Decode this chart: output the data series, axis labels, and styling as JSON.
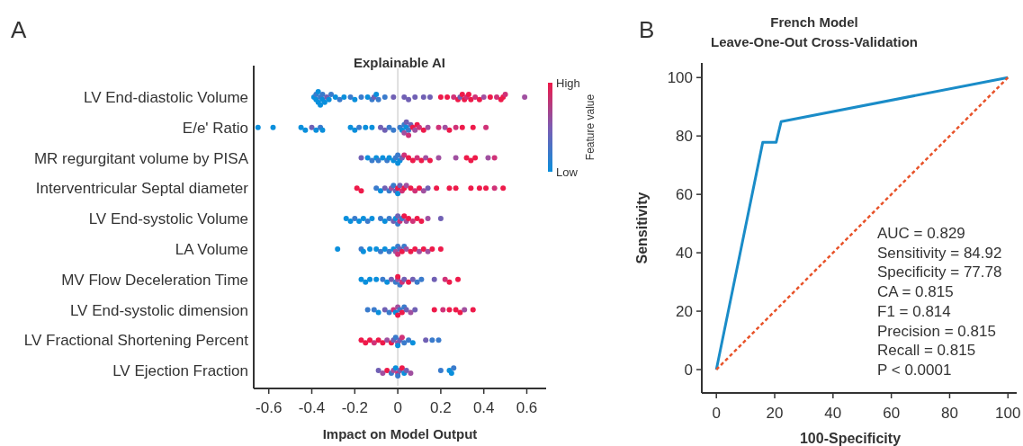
{
  "chart_data": [
    {
      "type": "scatter",
      "orientation": "horizontal",
      "title": "Explainable AI",
      "xlabel": "Impact on Model Output",
      "clabel": "Feature value",
      "clim": [
        0,
        1
      ],
      "cticks": [
        {
          "value": 0,
          "label": "Low"
        },
        {
          "value": 1,
          "label": "High"
        }
      ],
      "xlim": [
        -0.67,
        0.69
      ],
      "xticks": [
        {
          "value": -0.6,
          "label": "-0.6"
        },
        {
          "value": -0.4,
          "label": "-0.4"
        },
        {
          "value": -0.2,
          "label": "-0.2"
        },
        {
          "value": 0,
          "label": "0"
        },
        {
          "value": 0.2,
          "label": "0.2"
        },
        {
          "value": 0.4,
          "label": "0.4"
        },
        {
          "value": 0.6,
          "label": "0.6"
        }
      ],
      "ref_lines": [
        {
          "axis": "x",
          "value": 0,
          "color": "#d6d6d6"
        }
      ],
      "annotations": [
        "A"
      ],
      "categories": [
        "LV End-diastolic Volume",
        "E/e' Ratio",
        "MR regurgitant volume by PISA",
        "Interventricular Septal diameter",
        "LV End-systolic Volume",
        "LA Volume",
        "MV Flow Deceleration Time",
        "LV End-systolic dimension",
        "LV Fractional Shortening Percent",
        "LV Ejection Fraction"
      ],
      "series": [
        {
          "x": [
            "LV End-diastolic Volume",
            "LV End-diastolic Volume",
            "LV End-diastolic Volume",
            "LV End-diastolic Volume",
            "LV End-diastolic Volume",
            "LV End-diastolic Volume",
            "LV End-diastolic Volume",
            "LV End-diastolic Volume",
            "LV End-diastolic Volume",
            "LV End-diastolic Volume",
            "LV End-diastolic Volume",
            "LV End-diastolic Volume",
            "LV End-diastolic Volume",
            "LV End-diastolic Volume",
            "LV End-diastolic Volume",
            "LV End-diastolic Volume",
            "LV End-diastolic Volume",
            "LV End-diastolic Volume",
            "LV End-diastolic Volume",
            "LV End-diastolic Volume",
            "LV End-diastolic Volume",
            "LV End-diastolic Volume",
            "LV End-diastolic Volume",
            "LV End-diastolic Volume",
            "LV End-diastolic Volume",
            "LV End-diastolic Volume",
            "LV End-diastolic Volume",
            "LV End-diastolic Volume",
            "LV End-diastolic Volume",
            "LV End-diastolic Volume",
            "LV End-diastolic Volume",
            "LV End-diastolic Volume",
            "LV End-diastolic Volume",
            "LV End-diastolic Volume",
            "LV End-diastolic Volume",
            "LV End-diastolic Volume",
            "LV End-diastolic Volume",
            "LV End-diastolic Volume",
            "LV End-diastolic Volume",
            "LV End-diastolic Volume",
            "LV End-diastolic Volume",
            "LV End-diastolic Volume",
            "LV End-diastolic Volume",
            "LV End-diastolic Volume",
            "LV End-diastolic Volume",
            "LV End-diastolic Volume",
            "LV End-diastolic Volume",
            "LV End-diastolic Volume",
            "LV End-diastolic Volume",
            "LV End-diastolic Volume"
          ],
          "values": [
            -0.39,
            -0.38,
            -0.38,
            -0.37,
            -0.37,
            -0.36,
            -0.36,
            -0.35,
            -0.35,
            -0.34,
            -0.33,
            -0.32,
            -0.31,
            -0.29,
            -0.27,
            -0.25,
            -0.22,
            -0.2,
            -0.17,
            -0.14,
            -0.12,
            -0.11,
            -0.1,
            -0.09,
            -0.06,
            -0.02,
            0.03,
            0.05,
            0.08,
            0.12,
            0.15,
            0.2,
            0.23,
            0.26,
            0.28,
            0.29,
            0.3,
            0.31,
            0.32,
            0.33,
            0.34,
            0.36,
            0.38,
            0.4,
            0.43,
            0.46,
            0.48,
            0.49,
            0.5,
            0.59
          ],
          "colors": [
            "#0a8fdc",
            "#0a8fdc",
            "#3a7bcc",
            "#0a8fdc",
            "#0a8fdc",
            "#3a7bcc",
            "#0a8fdc",
            "#0a8fdc",
            "#3a7bcc",
            "#0a8fdc",
            "#7060b4",
            "#0a8fdc",
            "#3a7bcc",
            "#0a8fdc",
            "#3a7bcc",
            "#0a8fdc",
            "#3a7bcc",
            "#0a8fdc",
            "#3a7bcc",
            "#0a8fdc",
            "#3a7bcc",
            "#7060b4",
            "#0a8fdc",
            "#3a7bcc",
            "#3a7bcc",
            "#7060b4",
            "#7060b4",
            "#7060b4",
            "#7060b4",
            "#7060b4",
            "#7060b4",
            "#ee1a4a",
            "#ee1a4a",
            "#d03278",
            "#ee1a4a",
            "#7060b4",
            "#ee1a4a",
            "#ee1a4a",
            "#d03278",
            "#ee1a4a",
            "#ee1a4a",
            "#d03278",
            "#ee1a4a",
            "#a050a0",
            "#ee1a4a",
            "#d03278",
            "#ee1a4a",
            "#ee1a4a",
            "#d03278",
            "#a050a0"
          ]
        },
        {
          "x": [
            "E/e' Ratio",
            "E/e' Ratio",
            "E/e' Ratio",
            "E/e' Ratio",
            "E/e' Ratio",
            "E/e' Ratio",
            "E/e' Ratio",
            "E/e' Ratio",
            "E/e' Ratio",
            "E/e' Ratio",
            "E/e' Ratio",
            "E/e' Ratio",
            "E/e' Ratio",
            "E/e' Ratio",
            "E/e' Ratio",
            "E/e' Ratio",
            "E/e' Ratio",
            "E/e' Ratio",
            "E/e' Ratio",
            "E/e' Ratio",
            "E/e' Ratio",
            "E/e' Ratio",
            "E/e' Ratio",
            "E/e' Ratio",
            "E/e' Ratio",
            "E/e' Ratio",
            "E/e' Ratio",
            "E/e' Ratio",
            "E/e' Ratio",
            "E/e' Ratio",
            "E/e' Ratio",
            "E/e' Ratio",
            "E/e' Ratio",
            "E/e' Ratio",
            "E/e' Ratio",
            "E/e' Ratio",
            "E/e' Ratio",
            "E/e' Ratio",
            "E/e' Ratio"
          ],
          "values": [
            -0.65,
            -0.58,
            -0.45,
            -0.43,
            -0.4,
            -0.38,
            -0.36,
            -0.35,
            -0.22,
            -0.2,
            -0.18,
            -0.15,
            -0.12,
            -0.08,
            -0.06,
            -0.04,
            -0.02,
            0.01,
            0.02,
            0.03,
            0.03,
            0.04,
            0.04,
            0.05,
            0.05,
            0.06,
            0.07,
            0.08,
            0.09,
            0.1,
            0.12,
            0.14,
            0.19,
            0.22,
            0.24,
            0.27,
            0.3,
            0.35,
            0.41
          ],
          "colors": [
            "#0a8fdc",
            "#0a8fdc",
            "#0a8fdc",
            "#0a8fdc",
            "#7060b4",
            "#0a8fdc",
            "#3a7bcc",
            "#0a8fdc",
            "#0a8fdc",
            "#0a8fdc",
            "#3a7bcc",
            "#0a8fdc",
            "#0a8fdc",
            "#7060b4",
            "#7060b4",
            "#3a7bcc",
            "#3a7bcc",
            "#3a7bcc",
            "#0a8fdc",
            "#3a7bcc",
            "#a050a0",
            "#0a8fdc",
            "#7060b4",
            "#3a7bcc",
            "#d03278",
            "#7060b4",
            "#ee1a4a",
            "#a050a0",
            "#ee1a4a",
            "#d03278",
            "#ee1a4a",
            "#a050a0",
            "#d03278",
            "#a050a0",
            "#ee1a4a",
            "#d03278",
            "#ee1a4a",
            "#ee1a4a",
            "#d03278"
          ]
        },
        {
          "x": [
            "MR regurgitant volume by PISA",
            "MR regurgitant volume by PISA",
            "MR regurgitant volume by PISA",
            "MR regurgitant volume by PISA",
            "MR regurgitant volume by PISA",
            "MR regurgitant volume by PISA",
            "MR regurgitant volume by PISA",
            "MR regurgitant volume by PISA",
            "MR regurgitant volume by PISA",
            "MR regurgitant volume by PISA",
            "MR regurgitant volume by PISA",
            "MR regurgitant volume by PISA",
            "MR regurgitant volume by PISA",
            "MR regurgitant volume by PISA",
            "MR regurgitant volume by PISA",
            "MR regurgitant volume by PISA",
            "MR regurgitant volume by PISA",
            "MR regurgitant volume by PISA",
            "MR regurgitant volume by PISA",
            "MR regurgitant volume by PISA",
            "MR regurgitant volume by PISA",
            "MR regurgitant volume by PISA",
            "MR regurgitant volume by PISA",
            "MR regurgitant volume by PISA",
            "MR regurgitant volume by PISA",
            "MR regurgitant volume by PISA",
            "MR regurgitant volume by PISA",
            "MR regurgitant volume by PISA"
          ],
          "values": [
            -0.17,
            -0.14,
            -0.12,
            -0.1,
            -0.09,
            -0.07,
            -0.05,
            -0.04,
            -0.02,
            -0.01,
            0,
            0,
            0.01,
            0.02,
            0.03,
            0.05,
            0.07,
            0.09,
            0.11,
            0.13,
            0.15,
            0.19,
            0.27,
            0.32,
            0.34,
            0.36,
            0.42,
            0.45
          ],
          "colors": [
            "#7060b4",
            "#0a8fdc",
            "#3a7bcc",
            "#0a8fdc",
            "#3a7bcc",
            "#0a8fdc",
            "#3a7bcc",
            "#0a8fdc",
            "#0a8fdc",
            "#3a7bcc",
            "#3a7bcc",
            "#0a8fdc",
            "#0a8fdc",
            "#7060b4",
            "#d03278",
            "#ee1a4a",
            "#ee1a4a",
            "#d03278",
            "#ee1a4a",
            "#a050a0",
            "#ee1a4a",
            "#a050a0",
            "#a050a0",
            "#ee1a4a",
            "#ee1a4a",
            "#ee1a4a",
            "#a050a0",
            "#d03278"
          ]
        },
        {
          "x": [
            "Interventricular Septal diameter",
            "Interventricular Septal diameter",
            "Interventricular Septal diameter",
            "Interventricular Septal diameter",
            "Interventricular Septal diameter",
            "Interventricular Septal diameter",
            "Interventricular Septal diameter",
            "Interventricular Septal diameter",
            "Interventricular Septal diameter",
            "Interventricular Septal diameter",
            "Interventricular Septal diameter",
            "Interventricular Septal diameter",
            "Interventricular Septal diameter",
            "Interventricular Septal diameter",
            "Interventricular Septal diameter",
            "Interventricular Septal diameter",
            "Interventricular Septal diameter",
            "Interventricular Septal diameter",
            "Interventricular Septal diameter",
            "Interventricular Septal diameter",
            "Interventricular Septal diameter",
            "Interventricular Septal diameter",
            "Interventricular Septal diameter",
            "Interventricular Septal diameter",
            "Interventricular Septal diameter",
            "Interventricular Septal diameter",
            "Interventricular Septal diameter",
            "Interventricular Septal diameter"
          ],
          "values": [
            -0.19,
            -0.17,
            -0.1,
            -0.08,
            -0.06,
            -0.04,
            -0.03,
            -0.02,
            -0.01,
            0,
            0,
            0.01,
            0.02,
            0.03,
            0.04,
            0.06,
            0.08,
            0.1,
            0.12,
            0.14,
            0.18,
            0.24,
            0.27,
            0.34,
            0.38,
            0.41,
            0.45,
            0.49
          ],
          "colors": [
            "#ee1a4a",
            "#ee1a4a",
            "#3a7bcc",
            "#0a8fdc",
            "#7060b4",
            "#3a7bcc",
            "#a050a0",
            "#3a7bcc",
            "#7060b4",
            "#ee1a4a",
            "#0a8fdc",
            "#7060b4",
            "#d03278",
            "#ee1a4a",
            "#a050a0",
            "#ee1a4a",
            "#d03278",
            "#ee1a4a",
            "#a050a0",
            "#7060b4",
            "#ee1a4a",
            "#ee1a4a",
            "#ee1a4a",
            "#ee1a4a",
            "#ee1a4a",
            "#ee1a4a",
            "#d03278",
            "#ee1a4a"
          ]
        },
        {
          "x": [
            "LV End-systolic Volume",
            "LV End-systolic Volume",
            "LV End-systolic Volume",
            "LV End-systolic Volume",
            "LV End-systolic Volume",
            "LV End-systolic Volume",
            "LV End-systolic Volume",
            "LV End-systolic Volume",
            "LV End-systolic Volume",
            "LV End-systolic Volume",
            "LV End-systolic Volume",
            "LV End-systolic Volume",
            "LV End-systolic Volume",
            "LV End-systolic Volume",
            "LV End-systolic Volume",
            "LV End-systolic Volume",
            "LV End-systolic Volume",
            "LV End-systolic Volume",
            "LV End-systolic Volume",
            "LV End-systolic Volume",
            "LV End-systolic Volume",
            "LV End-systolic Volume",
            "LV End-systolic Volume",
            "LV End-systolic Volume"
          ],
          "values": [
            -0.24,
            -0.22,
            -0.2,
            -0.18,
            -0.16,
            -0.14,
            -0.12,
            -0.08,
            -0.06,
            -0.04,
            -0.02,
            -0.01,
            0,
            0,
            0.01,
            0.02,
            0.03,
            0.04,
            0.05,
            0.07,
            0.09,
            0.11,
            0.14,
            0.2
          ],
          "colors": [
            "#0a8fdc",
            "#0a8fdc",
            "#3a7bcc",
            "#0a8fdc",
            "#0a8fdc",
            "#3a7bcc",
            "#0a8fdc",
            "#3a7bcc",
            "#0a8fdc",
            "#3a7bcc",
            "#7060b4",
            "#0a8fdc",
            "#7060b4",
            "#3a7bcc",
            "#d03278",
            "#3a7bcc",
            "#ee1a4a",
            "#a050a0",
            "#ee1a4a",
            "#d03278",
            "#ee1a4a",
            "#ee1a4a",
            "#a050a0",
            "#7060b4"
          ]
        },
        {
          "x": [
            "LA Volume",
            "LA Volume",
            "LA Volume",
            "LA Volume",
            "LA Volume",
            "LA Volume",
            "LA Volume",
            "LA Volume",
            "LA Volume",
            "LA Volume",
            "LA Volume",
            "LA Volume",
            "LA Volume",
            "LA Volume",
            "LA Volume",
            "LA Volume",
            "LA Volume",
            "LA Volume",
            "LA Volume",
            "LA Volume",
            "LA Volume",
            "LA Volume",
            "LA Volume"
          ],
          "values": [
            -0.28,
            -0.17,
            -0.16,
            -0.13,
            -0.1,
            -0.08,
            -0.06,
            -0.04,
            -0.02,
            -0.01,
            0,
            0,
            0.01,
            0.02,
            0.03,
            0.04,
            0.06,
            0.08,
            0.1,
            0.12,
            0.14,
            0.16,
            0.2
          ],
          "colors": [
            "#0a8fdc",
            "#3a7bcc",
            "#0a8fdc",
            "#0a8fdc",
            "#0a8fdc",
            "#3a7bcc",
            "#0a8fdc",
            "#3a7bcc",
            "#0a8fdc",
            "#a050a0",
            "#3a7bcc",
            "#d03278",
            "#7060b4",
            "#ee1a4a",
            "#3a7bcc",
            "#a050a0",
            "#ee1a4a",
            "#ee1a4a",
            "#a050a0",
            "#ee1a4a",
            "#a050a0",
            "#ee1a4a",
            "#ee1a4a"
          ]
        },
        {
          "x": [
            "MV Flow Deceleration Time",
            "MV Flow Deceleration Time",
            "MV Flow Deceleration Time",
            "MV Flow Deceleration Time",
            "MV Flow Deceleration Time",
            "MV Flow Deceleration Time",
            "MV Flow Deceleration Time",
            "MV Flow Deceleration Time",
            "MV Flow Deceleration Time",
            "MV Flow Deceleration Time",
            "MV Flow Deceleration Time",
            "MV Flow Deceleration Time",
            "MV Flow Deceleration Time",
            "MV Flow Deceleration Time",
            "MV Flow Deceleration Time",
            "MV Flow Deceleration Time",
            "MV Flow Deceleration Time",
            "MV Flow Deceleration Time",
            "MV Flow Deceleration Time",
            "MV Flow Deceleration Time",
            "MV Flow Deceleration Time"
          ],
          "values": [
            -0.17,
            -0.15,
            -0.13,
            -0.1,
            -0.07,
            -0.05,
            -0.03,
            -0.01,
            0,
            0,
            0.01,
            0.02,
            0.03,
            0.05,
            0.07,
            0.09,
            0.11,
            0.17,
            0.22,
            0.24,
            0.28
          ],
          "colors": [
            "#0a8fdc",
            "#0a8fdc",
            "#0a8fdc",
            "#0a8fdc",
            "#3a7bcc",
            "#0a8fdc",
            "#7060b4",
            "#3a7bcc",
            "#a050a0",
            "#ee1a4a",
            "#3a7bcc",
            "#d03278",
            "#7060b4",
            "#ee1a4a",
            "#7060b4",
            "#3a7bcc",
            "#3a7bcc",
            "#7060b4",
            "#d03278",
            "#ee1a4a",
            "#ee1a4a"
          ]
        },
        {
          "x": [
            "LV End-systolic dimension",
            "LV End-systolic dimension",
            "LV End-systolic dimension",
            "LV End-systolic dimension",
            "LV End-systolic dimension",
            "LV End-systolic dimension",
            "LV End-systolic dimension",
            "LV End-systolic dimension",
            "LV End-systolic dimension",
            "LV End-systolic dimension",
            "LV End-systolic dimension",
            "LV End-systolic dimension",
            "LV End-systolic dimension",
            "LV End-systolic dimension",
            "LV End-systolic dimension",
            "LV End-systolic dimension",
            "LV End-systolic dimension",
            "LV End-systolic dimension",
            "LV End-systolic dimension",
            "LV End-systolic dimension",
            "LV End-systolic dimension",
            "LV End-systolic dimension"
          ],
          "values": [
            -0.14,
            -0.11,
            -0.09,
            -0.06,
            -0.04,
            -0.02,
            -0.01,
            0,
            0,
            0.01,
            0.02,
            0.03,
            0.04,
            0.06,
            0.08,
            0.17,
            0.21,
            0.24,
            0.27,
            0.29,
            0.31,
            0.35
          ],
          "colors": [
            "#3a7bcc",
            "#3a7bcc",
            "#0a8fdc",
            "#7060b4",
            "#3a7bcc",
            "#d03278",
            "#0a8fdc",
            "#a050a0",
            "#ee1a4a",
            "#3a7bcc",
            "#ee1a4a",
            "#3a7bcc",
            "#7060b4",
            "#a050a0",
            "#7060b4",
            "#ee1a4a",
            "#d03278",
            "#ee1a4a",
            "#ee1a4a",
            "#ee1a4a",
            "#a050a0",
            "#ee1a4a"
          ]
        },
        {
          "x": [
            "LV Fractional Shortening Percent",
            "LV Fractional Shortening Percent",
            "LV Fractional Shortening Percent",
            "LV Fractional Shortening Percent",
            "LV Fractional Shortening Percent",
            "LV Fractional Shortening Percent",
            "LV Fractional Shortening Percent",
            "LV Fractional Shortening Percent",
            "LV Fractional Shortening Percent",
            "LV Fractional Shortening Percent",
            "LV Fractional Shortening Percent",
            "LV Fractional Shortening Percent",
            "LV Fractional Shortening Percent",
            "LV Fractional Shortening Percent",
            "LV Fractional Shortening Percent",
            "LV Fractional Shortening Percent",
            "LV Fractional Shortening Percent",
            "LV Fractional Shortening Percent",
            "LV Fractional Shortening Percent",
            "LV Fractional Shortening Percent"
          ],
          "values": [
            -0.17,
            -0.15,
            -0.13,
            -0.11,
            -0.09,
            -0.07,
            -0.05,
            -0.03,
            -0.02,
            -0.01,
            0,
            0,
            0.01,
            0.02,
            0.03,
            0.05,
            0.07,
            0.13,
            0.16,
            0.19
          ],
          "colors": [
            "#ee1a4a",
            "#ee1a4a",
            "#ee1a4a",
            "#d03278",
            "#ee1a4a",
            "#ee1a4a",
            "#a050a0",
            "#ee1a4a",
            "#7060b4",
            "#3a7bcc",
            "#a050a0",
            "#0a8fdc",
            "#7060b4",
            "#d03278",
            "#3a7bcc",
            "#3a7bcc",
            "#0a8fdc",
            "#7060b4",
            "#3a7bcc",
            "#3a7bcc"
          ]
        },
        {
          "x": [
            "LV Ejection Fraction",
            "LV Ejection Fraction",
            "LV Ejection Fraction",
            "LV Ejection Fraction",
            "LV Ejection Fraction",
            "LV Ejection Fraction",
            "LV Ejection Fraction",
            "LV Ejection Fraction",
            "LV Ejection Fraction",
            "LV Ejection Fraction",
            "LV Ejection Fraction",
            "LV Ejection Fraction",
            "LV Ejection Fraction",
            "LV Ejection Fraction",
            "LV Ejection Fraction",
            "LV Ejection Fraction",
            "LV Ejection Fraction"
          ],
          "values": [
            -0.09,
            -0.07,
            -0.05,
            -0.03,
            -0.02,
            -0.01,
            0,
            0,
            0.01,
            0.02,
            0.03,
            0.04,
            0.06,
            0.2,
            0.24,
            0.25,
            0.26
          ],
          "colors": [
            "#7060b4",
            "#a050a0",
            "#ee1a4a",
            "#3a7bcc",
            "#a050a0",
            "#0a8fdc",
            "#d03278",
            "#3a7bcc",
            "#7060b4",
            "#ee1a4a",
            "#0a8fdc",
            "#7060b4",
            "#a050a0",
            "#3a7bcc",
            "#0a8fdc",
            "#0a8fdc",
            "#3a7bcc"
          ]
        }
      ]
    },
    {
      "type": "line",
      "title": "French Model",
      "subtitle": "Leave-One-Out Cross-Validation",
      "xlabel": "100-Specificity",
      "ylabel": "Sensitivity",
      "xlim": [
        -5,
        103
      ],
      "ylim": [
        -8,
        105
      ],
      "xticks": [
        0,
        20,
        40,
        60,
        80,
        100
      ],
      "yticks": [
        0,
        20,
        40,
        60,
        80,
        100
      ],
      "annotations": [
        "B",
        "AUC = 0.829",
        "Sensitivity = 84.92",
        "Specificity = 77.78",
        "CA = 0.815",
        "F1 = 0.814",
        "Precision = 0.815",
        "Recall = 0.815",
        "P < 0.0001"
      ],
      "series": [
        {
          "color": "#1a8cc8",
          "x": [
            0,
            15.9,
            20.5,
            22.2,
            100
          ],
          "values": [
            0,
            77.8,
            77.8,
            84.9,
            100
          ]
        },
        {
          "color": "#e8532a",
          "line_style": "dashed",
          "x": [
            0,
            100
          ],
          "values": [
            0,
            100
          ]
        }
      ]
    }
  ]
}
